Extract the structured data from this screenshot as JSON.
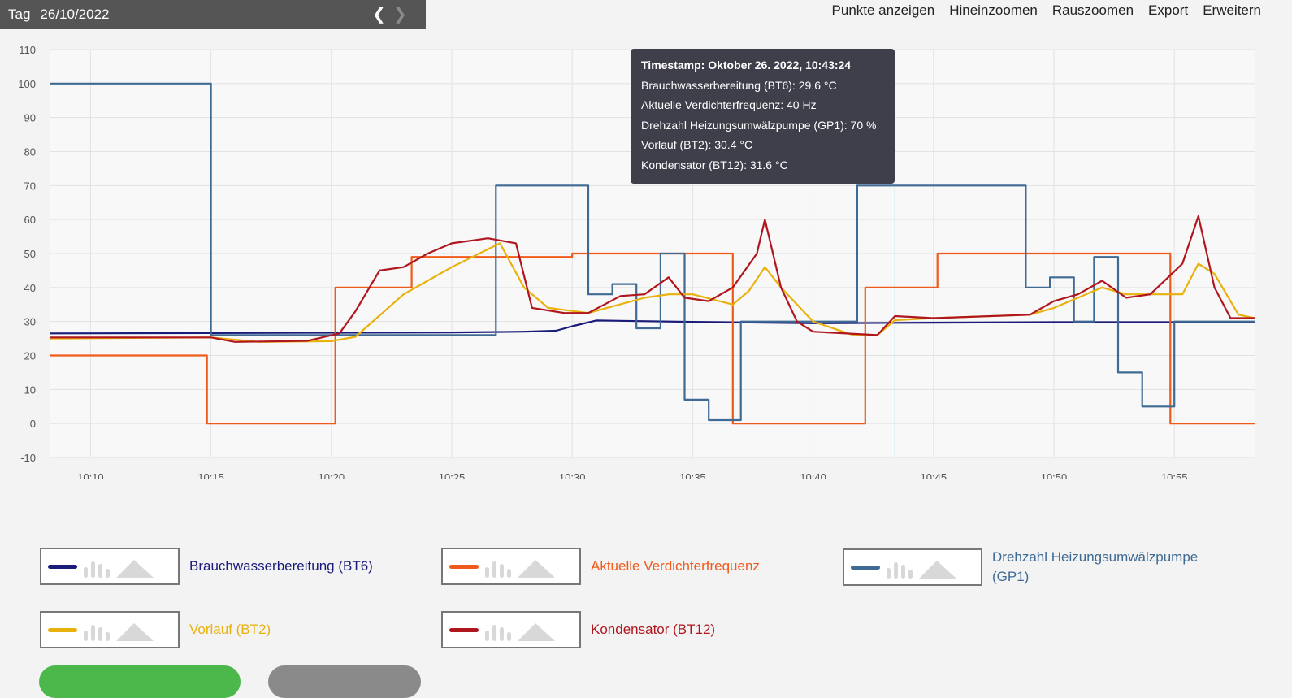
{
  "header": {
    "period_label": "Tag",
    "date": "26/10/2022",
    "prev_icon": "chevron-left-icon",
    "next_icon": "chevron-right-icon"
  },
  "toolbar": {
    "show_points": "Punkte anzeigen",
    "zoom_in": "Hineinzoomen",
    "zoom_out": "Rauszoomen",
    "export": "Export",
    "expand": "Erweitern"
  },
  "tooltip": {
    "title": "Timestamp: Oktober 26. 2022, 10:43:24",
    "lines": [
      "Brauchwasserbereitung (BT6): 29.6 °C",
      "Aktuelle Verdichterfrequenz: 40 Hz",
      "Drehzahl Heizungsumwälzpumpe (GP1): 70 %",
      "Vorlauf (BT2): 30.4 °C",
      "Kondensator (BT12): 31.6 °C"
    ]
  },
  "chart_data": {
    "type": "line",
    "x_axis": {
      "unit": "time",
      "min": "10:08:20",
      "max": "10:58:20",
      "ticks": [
        "10:10",
        "10:15",
        "10:20",
        "10:25",
        "10:30",
        "10:35",
        "10:40",
        "10:45",
        "10:50",
        "10:55"
      ]
    },
    "y_axis": {
      "min": -10,
      "max": 110,
      "ticks": [
        -10,
        0,
        10,
        20,
        30,
        40,
        50,
        60,
        70,
        80,
        90,
        100,
        110
      ]
    },
    "grid": true,
    "legend_position": "bottom",
    "crosshair_x": "10:43:24",
    "series": [
      {
        "name": "Brauchwasserbereitung (BT6)",
        "color": "#1b1b7a",
        "points": [
          [
            "10:08:20",
            26.5
          ],
          [
            "10:15:00",
            26.6
          ],
          [
            "10:20:00",
            26.7
          ],
          [
            "10:25:00",
            26.8
          ],
          [
            "10:28:00",
            27.0
          ],
          [
            "10:29:20",
            27.3
          ],
          [
            "10:30:00",
            28.6
          ],
          [
            "10:31:00",
            30.3
          ],
          [
            "10:35:00",
            29.9
          ],
          [
            "10:40:00",
            29.5
          ],
          [
            "10:43:24",
            29.6
          ],
          [
            "10:50:00",
            29.8
          ],
          [
            "10:58:20",
            29.8
          ]
        ]
      },
      {
        "name": "Aktuelle Verdichterfrequenz",
        "color": "#f05a1a",
        "points": [
          [
            "10:08:20",
            20
          ],
          [
            "10:14:50",
            20
          ],
          [
            "10:14:50",
            0
          ],
          [
            "10:20:10",
            0
          ],
          [
            "10:20:10",
            40
          ],
          [
            "10:23:20",
            40
          ],
          [
            "10:23:20",
            49
          ],
          [
            "10:30:00",
            49
          ],
          [
            "10:30:00",
            50
          ],
          [
            "10:36:40",
            50
          ],
          [
            "10:36:40",
            0
          ],
          [
            "10:42:10",
            0
          ],
          [
            "10:42:10",
            40
          ],
          [
            "10:45:10",
            40
          ],
          [
            "10:45:10",
            50
          ],
          [
            "10:54:50",
            50
          ],
          [
            "10:54:50",
            0
          ],
          [
            "10:58:20",
            0
          ]
        ]
      },
      {
        "name": "Drehzahl Heizungsumwälzpumpe (GP1)",
        "color": "#3f6a94",
        "points": [
          [
            "10:08:20",
            100
          ],
          [
            "10:15:00",
            100
          ],
          [
            "10:15:00",
            26
          ],
          [
            "10:26:50",
            26
          ],
          [
            "10:26:50",
            70
          ],
          [
            "10:30:40",
            70
          ],
          [
            "10:30:40",
            38
          ],
          [
            "10:31:40",
            38
          ],
          [
            "10:31:40",
            41
          ],
          [
            "10:32:40",
            41
          ],
          [
            "10:32:40",
            28
          ],
          [
            "10:33:40",
            28
          ],
          [
            "10:33:40",
            50
          ],
          [
            "10:34:40",
            50
          ],
          [
            "10:34:40",
            7
          ],
          [
            "10:35:40",
            7
          ],
          [
            "10:35:40",
            1
          ],
          [
            "10:37:00",
            1
          ],
          [
            "10:37:00",
            30
          ],
          [
            "10:41:50",
            30
          ],
          [
            "10:41:50",
            70
          ],
          [
            "10:48:50",
            70
          ],
          [
            "10:48:50",
            40
          ],
          [
            "10:49:50",
            40
          ],
          [
            "10:49:50",
            43
          ],
          [
            "10:50:50",
            43
          ],
          [
            "10:50:50",
            30
          ],
          [
            "10:51:40",
            30
          ],
          [
            "10:51:40",
            49
          ],
          [
            "10:52:40",
            49
          ],
          [
            "10:52:40",
            15
          ],
          [
            "10:53:40",
            15
          ],
          [
            "10:53:40",
            5
          ],
          [
            "10:55:00",
            5
          ],
          [
            "10:55:00",
            30
          ],
          [
            "10:58:20",
            30
          ]
        ]
      },
      {
        "name": "Vorlauf (BT2)",
        "color": "#e9b10c",
        "points": [
          [
            "10:08:20",
            25
          ],
          [
            "10:15:00",
            25.3
          ],
          [
            "10:17:00",
            24
          ],
          [
            "10:20:00",
            24.2
          ],
          [
            "10:21:00",
            25.5
          ],
          [
            "10:23:00",
            38
          ],
          [
            "10:25:00",
            46
          ],
          [
            "10:27:00",
            53
          ],
          [
            "10:28:00",
            40
          ],
          [
            "10:29:00",
            34
          ],
          [
            "10:30:40",
            32.5
          ],
          [
            "10:33:00",
            37
          ],
          [
            "10:34:00",
            38
          ],
          [
            "10:35:00",
            38
          ],
          [
            "10:36:40",
            35
          ],
          [
            "10:37:20",
            39
          ],
          [
            "10:38:00",
            46
          ],
          [
            "10:38:40",
            40
          ],
          [
            "10:40:00",
            30
          ],
          [
            "10:41:40",
            26
          ],
          [
            "10:42:40",
            26
          ],
          [
            "10:43:24",
            30.4
          ],
          [
            "10:45:00",
            31
          ],
          [
            "10:49:00",
            32
          ],
          [
            "10:50:00",
            34
          ],
          [
            "10:51:00",
            37
          ],
          [
            "10:52:00",
            40
          ],
          [
            "10:53:00",
            38
          ],
          [
            "10:55:20",
            38
          ],
          [
            "10:56:00",
            47
          ],
          [
            "10:56:40",
            44
          ],
          [
            "10:57:40",
            32
          ],
          [
            "10:58:20",
            31
          ]
        ]
      },
      {
        "name": "Kondensator (BT12)",
        "color": "#b0161e",
        "points": [
          [
            "10:08:20",
            25.3
          ],
          [
            "10:15:00",
            25.3
          ],
          [
            "10:16:00",
            24
          ],
          [
            "10:19:00",
            24.3
          ],
          [
            "10:20:20",
            26.5
          ],
          [
            "10:21:00",
            33
          ],
          [
            "10:22:00",
            45
          ],
          [
            "10:23:00",
            46
          ],
          [
            "10:24:00",
            50
          ],
          [
            "10:25:00",
            53
          ],
          [
            "10:26:00",
            54
          ],
          [
            "10:26:30",
            54.5
          ],
          [
            "10:27:40",
            53
          ],
          [
            "10:28:20",
            34
          ],
          [
            "10:29:40",
            32.5
          ],
          [
            "10:30:40",
            32.5
          ],
          [
            "10:31:20",
            35
          ],
          [
            "10:32:00",
            37.5
          ],
          [
            "10:33:00",
            38
          ],
          [
            "10:34:00",
            43
          ],
          [
            "10:34:40",
            37
          ],
          [
            "10:35:40",
            36
          ],
          [
            "10:36:40",
            40
          ],
          [
            "10:37:40",
            50
          ],
          [
            "10:38:00",
            60
          ],
          [
            "10:38:40",
            40
          ],
          [
            "10:39:20",
            30
          ],
          [
            "10:40:00",
            27
          ],
          [
            "10:42:40",
            26
          ],
          [
            "10:43:24",
            31.6
          ],
          [
            "10:45:00",
            31
          ],
          [
            "10:49:00",
            32
          ],
          [
            "10:50:00",
            36
          ],
          [
            "10:51:00",
            38
          ],
          [
            "10:52:00",
            42
          ],
          [
            "10:53:00",
            37
          ],
          [
            "10:54:00",
            38
          ],
          [
            "10:55:20",
            47
          ],
          [
            "10:56:00",
            61
          ],
          [
            "10:56:40",
            40
          ],
          [
            "10:57:20",
            31
          ],
          [
            "10:58:20",
            31
          ]
        ]
      }
    ]
  },
  "legend": [
    {
      "label": "Brauchwasserbereitung (BT6)",
      "color": "#1b1b7a"
    },
    {
      "label": "Aktuelle Verdichterfrequenz",
      "color": "#f05a1a"
    },
    {
      "label": "Drehzahl Heizungsumwälzpumpe (GP1)",
      "color": "#3f6a94"
    },
    {
      "label": "Vorlauf (BT2)",
      "color": "#e9b10c"
    },
    {
      "label": "Kondensator (BT12)",
      "color": "#b0161e"
    }
  ],
  "bottom_buttons": [
    {
      "color": "#4cb84c"
    },
    {
      "color": "#8a8a8a"
    }
  ]
}
